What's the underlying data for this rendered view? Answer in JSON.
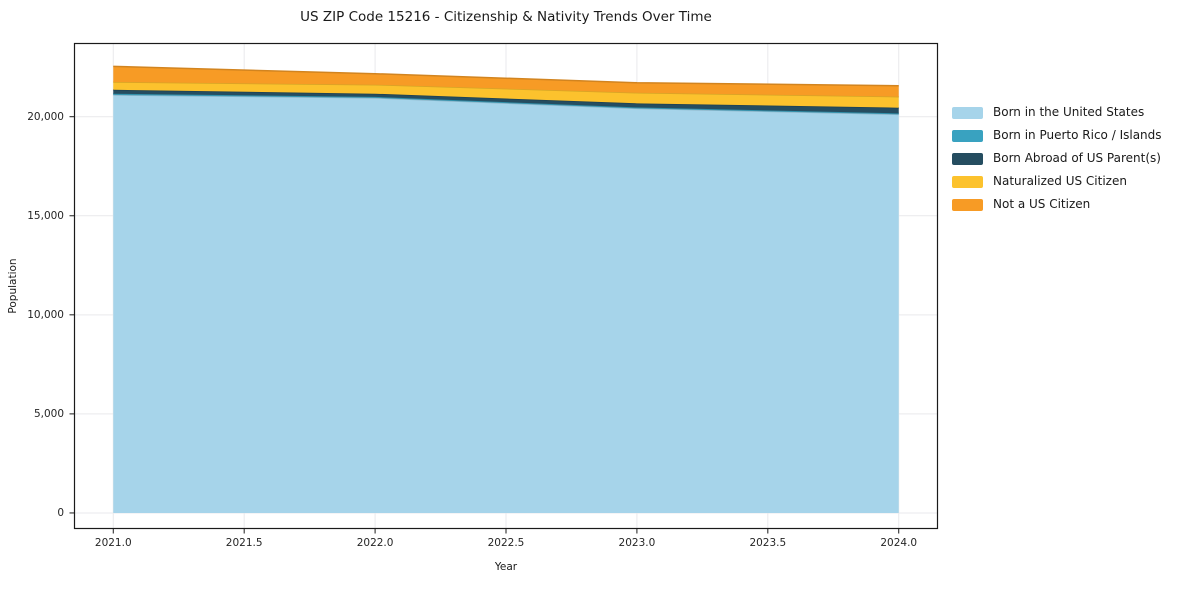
{
  "title": "US ZIP Code 15216 - Citizenship & Nativity Trends Over Time",
  "chart_data": {
    "type": "area",
    "stacked": true,
    "title": "US ZIP Code 15216 - Citizenship & Nativity Trends Over Time",
    "xlabel": "Year",
    "ylabel": "Population",
    "x": [
      2021,
      2022,
      2023,
      2024
    ],
    "series": [
      {
        "name": "Born in the United States",
        "color": "#a6d4ea",
        "values": [
          21100,
          20950,
          20420,
          20120
        ]
      },
      {
        "name": "Born in Puerto Rico / Islands",
        "color": "#39a2c0",
        "values": [
          60,
          50,
          50,
          50
        ]
      },
      {
        "name": "Born Abroad of US Parent(s)",
        "color": "#254d60",
        "values": [
          200,
          160,
          205,
          285
        ]
      },
      {
        "name": "Naturalized US Citizen",
        "color": "#fcc22d",
        "values": [
          390,
          455,
          535,
          555
        ]
      },
      {
        "name": "Not a US Citizen",
        "color": "#f79b25",
        "values": [
          790,
          555,
          505,
          555
        ]
      }
    ],
    "x_ticks": {
      "values": [
        2021,
        2021.5,
        2022,
        2022.5,
        2023,
        2023.5,
        2024
      ],
      "labels": [
        "2021.0",
        "2021.5",
        "2022.0",
        "2022.5",
        "2023.0",
        "2023.5",
        "2024.0"
      ]
    },
    "y_ticks": {
      "values": [
        0,
        5000,
        10000,
        15000,
        20000
      ],
      "labels": [
        "0",
        "5,000",
        "10,000",
        "15,000",
        "20,000"
      ]
    },
    "xlim": [
      2020.85,
      2024.15
    ],
    "ylim": [
      -810,
      23720
    ],
    "grid": true,
    "grid_color": "#e9e9ec",
    "axis_color": "#1a1a1a",
    "legend_position": "right"
  }
}
